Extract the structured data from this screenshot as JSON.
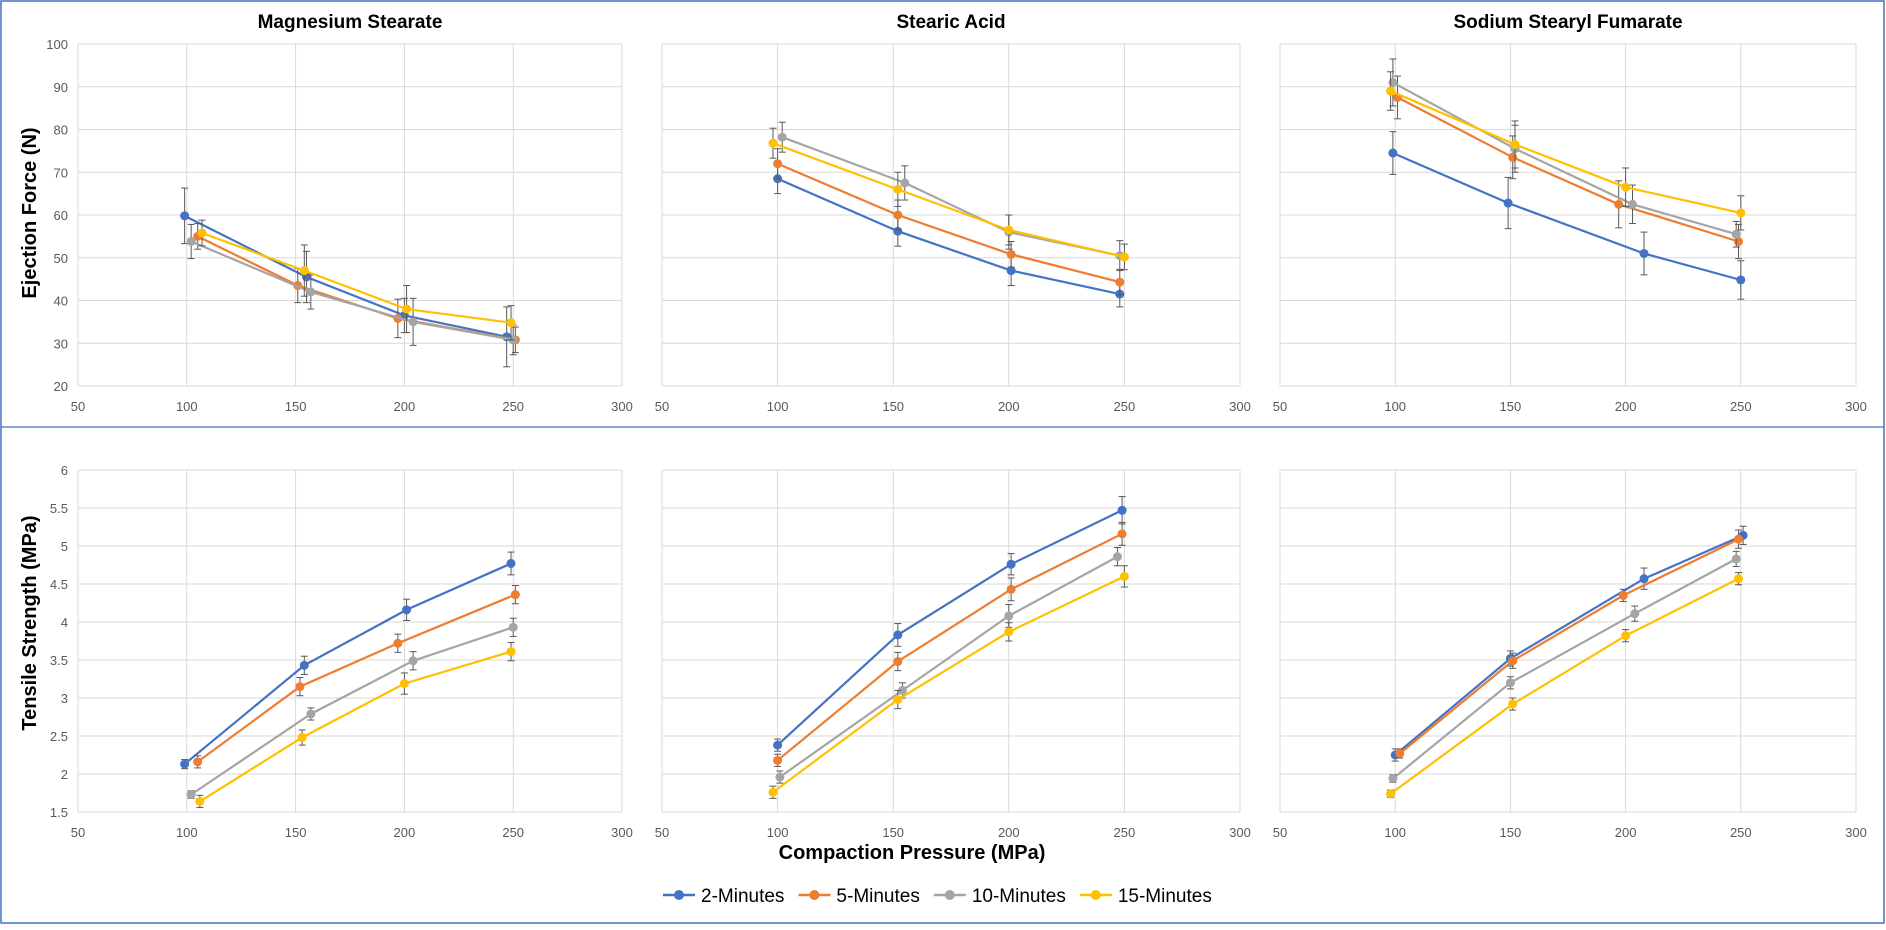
{
  "figure": {
    "x_axis_label": "Compaction Pressure (MPa)",
    "row_y_labels": [
      "Ejection Force (N)",
      "Tensile Strength (MPa)"
    ],
    "legend": [
      {
        "name": "2-Minutes",
        "color": "#4472C4"
      },
      {
        "name": "5-Minutes",
        "color": "#ED7D31"
      },
      {
        "name": "10-Minutes",
        "color": "#A5A5A5"
      },
      {
        "name": "15-Minutes",
        "color": "#FFC000"
      }
    ],
    "colors": {
      "frame": "#4472C4",
      "grid": "#D9D9D9",
      "errorbar": "#595959",
      "tick_text": "#595959"
    }
  },
  "chart_data": [
    {
      "type": "line",
      "title": "Magnesium Stearate",
      "ylabel": "Ejection Force (N)",
      "xlim": [
        50,
        300
      ],
      "ylim": [
        20,
        100
      ],
      "xticks": [
        "50",
        "100",
        "150",
        "200",
        "250",
        "300"
      ],
      "yticks": [
        "20",
        "30",
        "40",
        "50",
        "60",
        "70",
        "80",
        "90",
        "100"
      ],
      "grid": true,
      "series": [
        {
          "name": "2-Minutes",
          "x": [
            99,
            155,
            200,
            247
          ],
          "y": [
            59.8,
            45.5,
            36.5,
            31.5
          ],
          "err": [
            6.5,
            6.0,
            4.0,
            7.0
          ]
        },
        {
          "name": "5-Minutes",
          "x": [
            105,
            151,
            197,
            251
          ],
          "y": [
            55.0,
            43.5,
            35.8,
            30.8
          ],
          "err": [
            3.0,
            4.0,
            4.5,
            3.0
          ]
        },
        {
          "name": "10-Minutes",
          "x": [
            102,
            157,
            204,
            250
          ],
          "y": [
            53.8,
            42.0,
            35.0,
            30.8
          ],
          "err": [
            4.0,
            4.0,
            5.5,
            3.5
          ]
        },
        {
          "name": "15-Minutes",
          "x": [
            107,
            154,
            201,
            249
          ],
          "y": [
            55.8,
            47.0,
            38.0,
            34.8
          ],
          "err": [
            3.0,
            6.0,
            5.5,
            4.0
          ]
        }
      ]
    },
    {
      "type": "line",
      "title": "Stearic Acid",
      "ylabel": "",
      "xlim": [
        50,
        300
      ],
      "ylim": [
        20,
        100
      ],
      "xticks": [
        "50",
        "100",
        "150",
        "200",
        "250",
        "300"
      ],
      "yticks": [],
      "grid": true,
      "series": [
        {
          "name": "2-Minutes",
          "x": [
            100,
            152,
            201,
            248
          ],
          "y": [
            68.5,
            56.2,
            47.0,
            41.5
          ],
          "err": [
            3.5,
            3.5,
            3.5,
            3.0
          ]
        },
        {
          "name": "5-Minutes",
          "x": [
            100,
            152,
            201,
            248
          ],
          "y": [
            72.0,
            60.0,
            50.8,
            44.3
          ],
          "err": [
            3.5,
            3.5,
            3.0,
            3.0
          ]
        },
        {
          "name": "10-Minutes",
          "x": [
            102,
            155,
            200,
            248
          ],
          "y": [
            78.2,
            67.5,
            56.0,
            50.5
          ],
          "err": [
            3.5,
            4.0,
            4.0,
            3.5
          ]
        },
        {
          "name": "15-Minutes",
          "x": [
            98,
            152,
            200,
            250
          ],
          "y": [
            76.8,
            66.0,
            56.5,
            50.2
          ],
          "err": [
            3.5,
            4.0,
            3.5,
            3.0
          ]
        }
      ]
    },
    {
      "type": "line",
      "title": "Sodium Stearyl Fumarate",
      "ylabel": "",
      "xlim": [
        50,
        300
      ],
      "ylim": [
        20,
        100
      ],
      "xticks": [
        "50",
        "100",
        "150",
        "200",
        "250",
        "300"
      ],
      "yticks": [],
      "grid": true,
      "series": [
        {
          "name": "2-Minutes",
          "x": [
            99,
            149,
            208,
            250
          ],
          "y": [
            74.5,
            62.8,
            51.0,
            44.8
          ],
          "err": [
            5.0,
            6.0,
            5.0,
            4.5
          ]
        },
        {
          "name": "5-Minutes",
          "x": [
            101,
            151,
            197,
            249
          ],
          "y": [
            87.5,
            73.5,
            62.5,
            53.8
          ],
          "err": [
            5.0,
            5.0,
            5.5,
            4.0
          ]
        },
        {
          "name": "10-Minutes",
          "x": [
            99,
            152,
            203,
            248
          ],
          "y": [
            91.0,
            75.5,
            62.5,
            55.5
          ],
          "err": [
            5.5,
            5.5,
            4.5,
            3.0
          ]
        },
        {
          "name": "15-Minutes",
          "x": [
            98,
            152,
            200,
            250
          ],
          "y": [
            89.0,
            76.5,
            66.5,
            60.5
          ],
          "err": [
            4.5,
            5.5,
            4.5,
            4.0
          ]
        }
      ]
    },
    {
      "type": "line",
      "title": "",
      "ylabel": "Tensile Strength (MPa)",
      "xlim": [
        50,
        300
      ],
      "ylim": [
        1.5,
        6
      ],
      "xticks": [
        "50",
        "100",
        "150",
        "200",
        "250",
        "300"
      ],
      "yticks": [
        "1.5",
        "2",
        "2.5",
        "3",
        "3.5",
        "4",
        "4.5",
        "5",
        "5.5",
        "6"
      ],
      "grid": true,
      "series": [
        {
          "name": "2-Minutes",
          "x": [
            99,
            154,
            201,
            249
          ],
          "y": [
            2.13,
            3.43,
            4.16,
            4.77
          ],
          "err": [
            0.06,
            0.12,
            0.14,
            0.15
          ]
        },
        {
          "name": "5-Minutes",
          "x": [
            105,
            152,
            197,
            251
          ],
          "y": [
            2.16,
            3.15,
            3.72,
            4.36
          ],
          "err": [
            0.08,
            0.12,
            0.12,
            0.12
          ]
        },
        {
          "name": "10-Minutes",
          "x": [
            102,
            157,
            204,
            250
          ],
          "y": [
            1.73,
            2.79,
            3.49,
            3.93
          ],
          "err": [
            0.05,
            0.08,
            0.12,
            0.12
          ]
        },
        {
          "name": "15-Minutes",
          "x": [
            106,
            153,
            200,
            249
          ],
          "y": [
            1.64,
            2.48,
            3.19,
            3.61
          ],
          "err": [
            0.08,
            0.1,
            0.14,
            0.12
          ]
        }
      ]
    },
    {
      "type": "line",
      "title": "",
      "ylabel": "",
      "xlim": [
        50,
        300
      ],
      "ylim": [
        1.5,
        6
      ],
      "xticks": [
        "50",
        "100",
        "150",
        "200",
        "250",
        "300"
      ],
      "yticks": [],
      "grid": true,
      "series": [
        {
          "name": "2-Minutes",
          "x": [
            100,
            152,
            201,
            249
          ],
          "y": [
            2.38,
            3.83,
            4.76,
            5.47
          ],
          "err": [
            0.08,
            0.15,
            0.14,
            0.18
          ]
        },
        {
          "name": "5-Minutes",
          "x": [
            100,
            152,
            201,
            249
          ],
          "y": [
            2.18,
            3.48,
            4.43,
            5.16
          ],
          "err": [
            0.08,
            0.12,
            0.15,
            0.15
          ]
        },
        {
          "name": "10-Minutes",
          "x": [
            101,
            154,
            200,
            247
          ],
          "y": [
            1.96,
            3.1,
            4.08,
            4.86
          ],
          "err": [
            0.08,
            0.1,
            0.15,
            0.12
          ]
        },
        {
          "name": "15-Minutes",
          "x": [
            98,
            152,
            200,
            250
          ],
          "y": [
            1.76,
            2.98,
            3.87,
            4.6
          ],
          "err": [
            0.08,
            0.12,
            0.12,
            0.14
          ]
        }
      ]
    },
    {
      "type": "line",
      "title": "",
      "ylabel": "",
      "xlim": [
        50,
        300
      ],
      "ylim": [
        1.5,
        6
      ],
      "xticks": [
        "50",
        "100",
        "150",
        "200",
        "250",
        "300"
      ],
      "yticks": [],
      "grid": true,
      "series": [
        {
          "name": "2-Minutes",
          "x": [
            100,
            150,
            208,
            251
          ],
          "y": [
            2.25,
            3.52,
            4.57,
            5.14
          ],
          "err": [
            0.08,
            0.1,
            0.14,
            0.12
          ]
        },
        {
          "name": "5-Minutes",
          "x": [
            102,
            151,
            199,
            249
          ],
          "y": [
            2.27,
            3.49,
            4.35,
            5.09
          ],
          "err": [
            0.06,
            0.1,
            0.08,
            0.12
          ]
        },
        {
          "name": "10-Minutes",
          "x": [
            99,
            150,
            204,
            248
          ],
          "y": [
            1.94,
            3.2,
            4.11,
            4.83
          ],
          "err": [
            0.05,
            0.08,
            0.1,
            0.1
          ]
        },
        {
          "name": "15-Minutes",
          "x": [
            98,
            151,
            200,
            249
          ],
          "y": [
            1.74,
            2.92,
            3.82,
            4.57
          ],
          "err": [
            0.05,
            0.08,
            0.08,
            0.08
          ]
        }
      ]
    }
  ]
}
